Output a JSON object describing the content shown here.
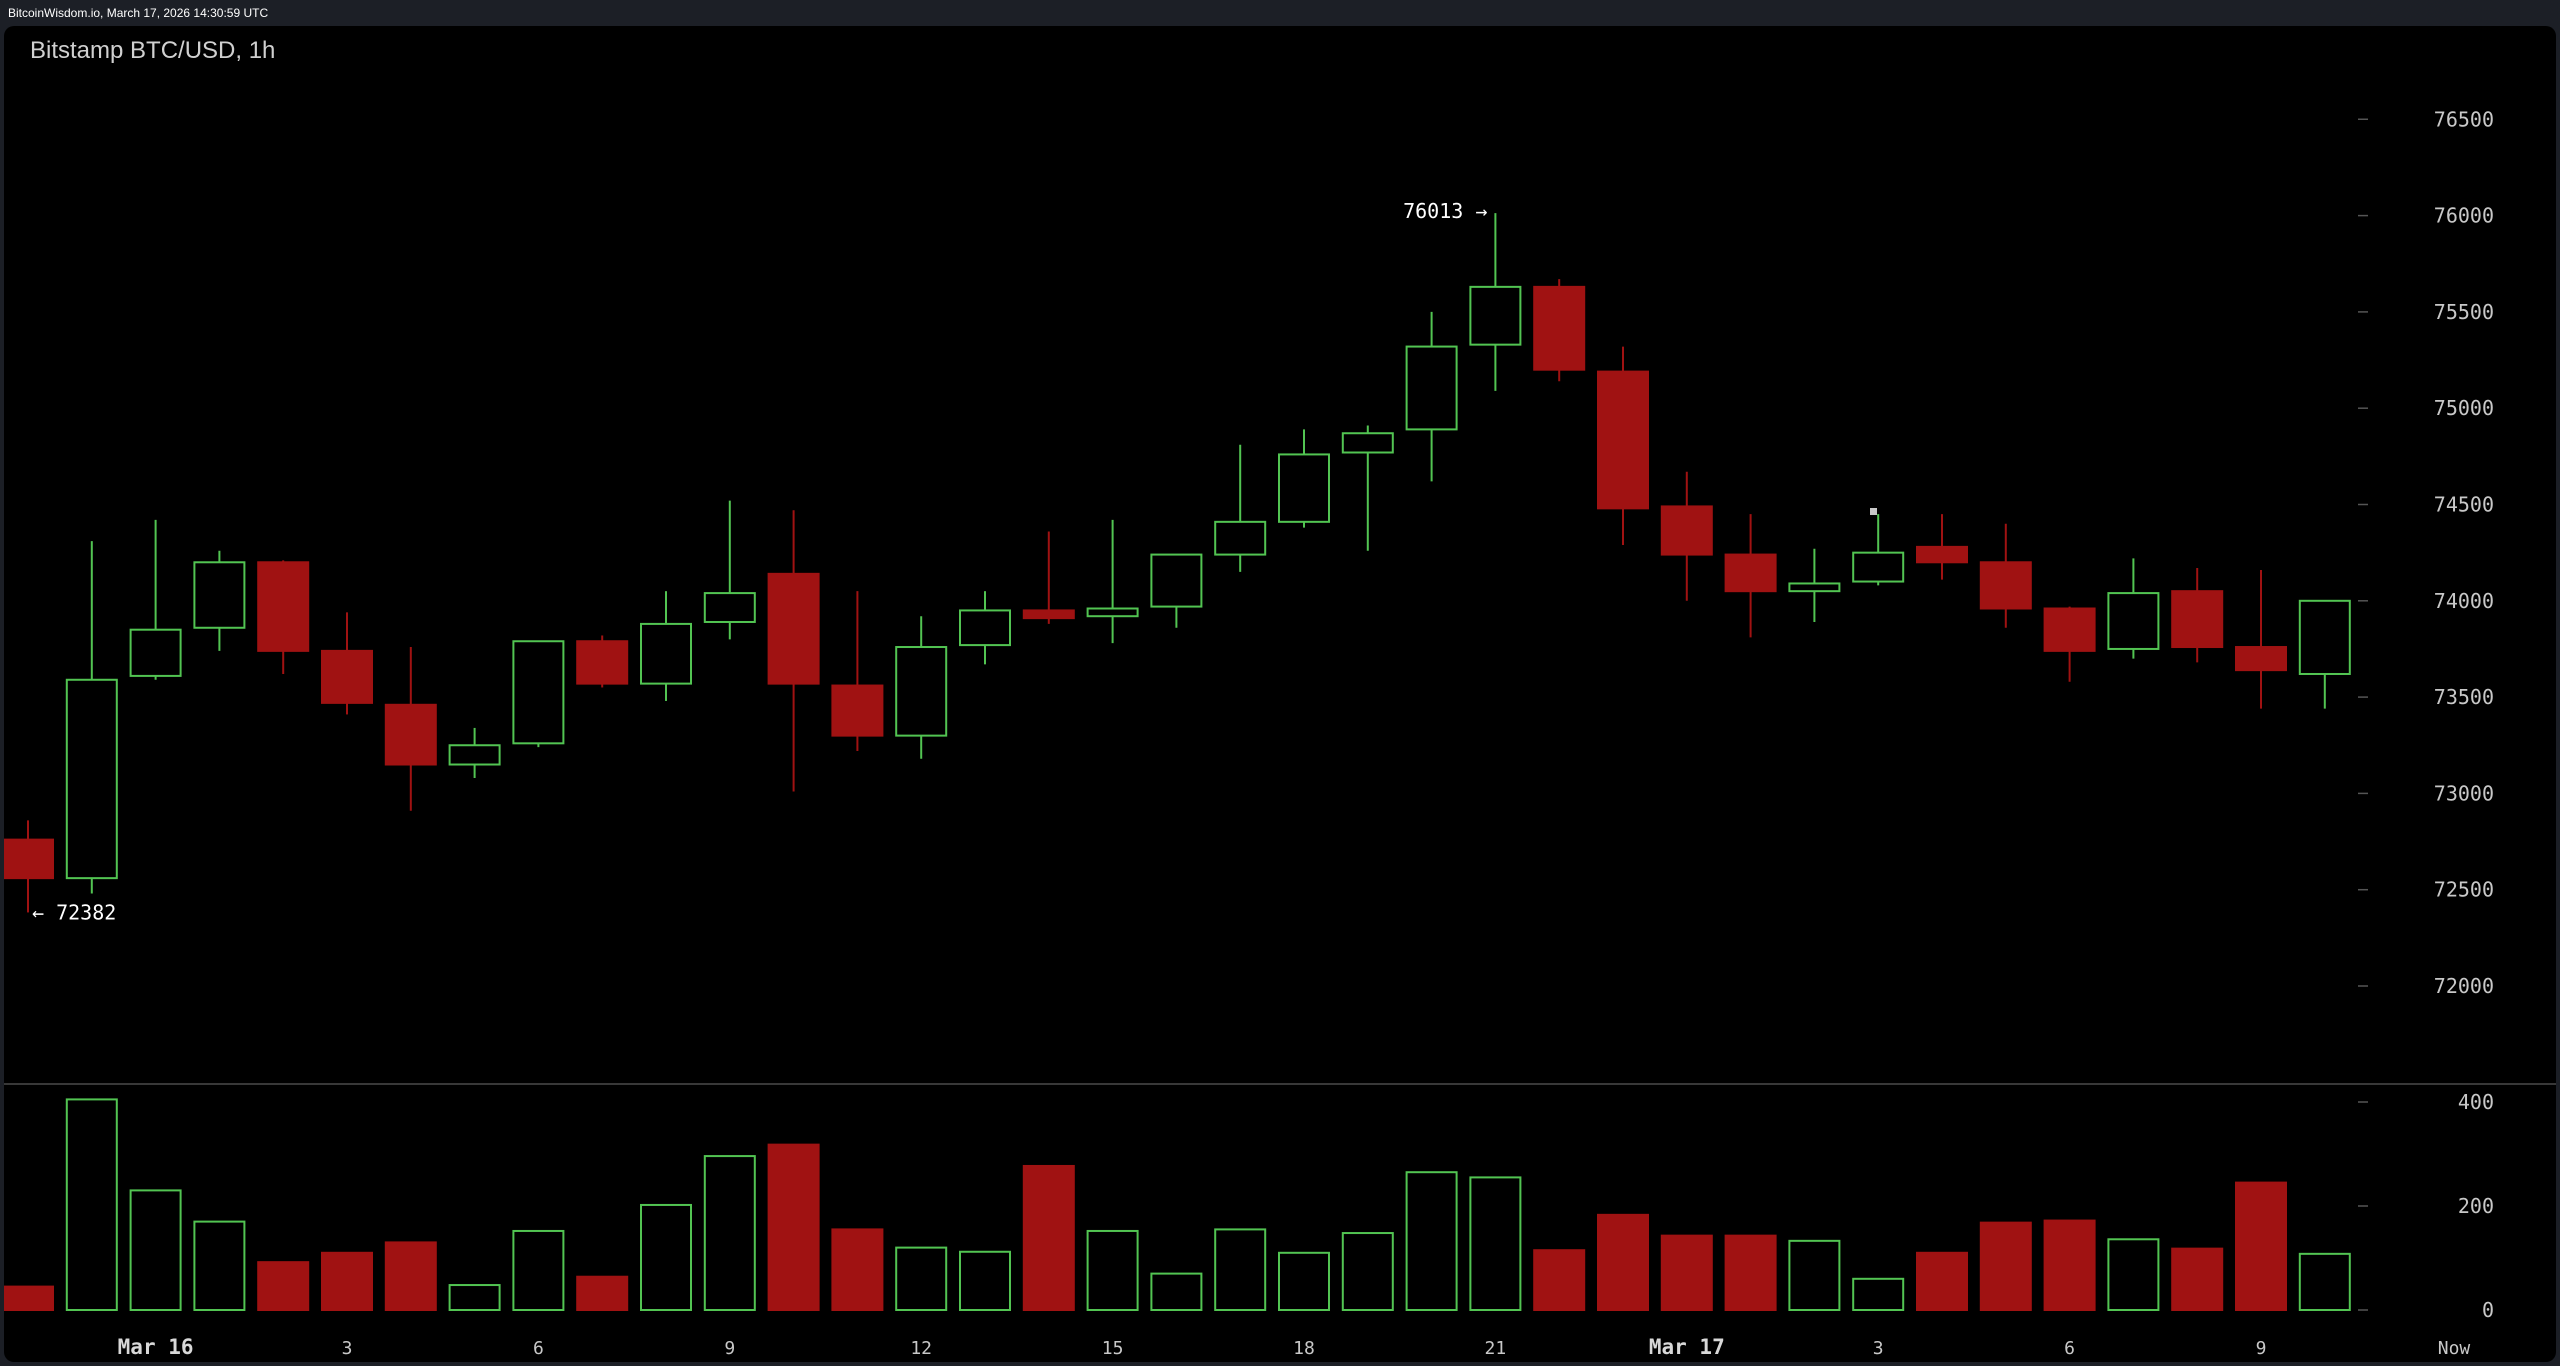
{
  "header": {
    "text": "BitcoinWisdom.io, March 17, 2026 14:30:59 UTC"
  },
  "chart": {
    "title": "Bitstamp BTC/USD, 1h"
  },
  "colors": {
    "up": "#52c452",
    "down": "#a01212",
    "background": "#000000",
    "divider": "#505050"
  },
  "chart_data": {
    "type": "candlestick",
    "title": "Bitstamp BTC/USD, 1h",
    "price_axis": {
      "ylim": [
        71500,
        76800
      ],
      "ticks": [
        72000,
        72500,
        73000,
        73500,
        74000,
        74500,
        75000,
        75500,
        76000,
        76500
      ],
      "position": "right"
    },
    "volume_axis": {
      "ylim": [
        0,
        420
      ],
      "ticks": [
        0,
        200,
        400
      ],
      "position": "right"
    },
    "time_labels": [
      {
        "index": 2,
        "label": "Mar 16",
        "major": true
      },
      {
        "index": 5,
        "label": "3"
      },
      {
        "index": 8,
        "label": "6"
      },
      {
        "index": 11,
        "label": "9"
      },
      {
        "index": 14,
        "label": "12"
      },
      {
        "index": 17,
        "label": "15"
      },
      {
        "index": 20,
        "label": "18"
      },
      {
        "index": 23,
        "label": "21"
      },
      {
        "index": 26,
        "label": "Mar 17",
        "major": true
      },
      {
        "index": 29,
        "label": "3"
      },
      {
        "index": 32,
        "label": "6"
      },
      {
        "index": 35,
        "label": "9"
      },
      {
        "index": 38,
        "label": "Now"
      }
    ],
    "annotations": [
      {
        "type": "high",
        "index": 23,
        "value": 76013,
        "label": "76013 →"
      },
      {
        "type": "low",
        "index": 0,
        "value": 72382,
        "label": "← 72382"
      }
    ],
    "candles": [
      {
        "o": 72760,
        "h": 72860,
        "l": 72382,
        "c": 72560,
        "v": 45
      },
      {
        "o": 72560,
        "h": 74310,
        "l": 72480,
        "c": 73590,
        "v": 405
      },
      {
        "o": 73610,
        "h": 74420,
        "l": 73590,
        "c": 73850,
        "v": 230
      },
      {
        "o": 73860,
        "h": 74260,
        "l": 73740,
        "c": 74200,
        "v": 170
      },
      {
        "o": 74200,
        "h": 74210,
        "l": 73620,
        "c": 73740,
        "v": 92
      },
      {
        "o": 73740,
        "h": 73940,
        "l": 73410,
        "c": 73470,
        "v": 110
      },
      {
        "o": 73460,
        "h": 73760,
        "l": 72910,
        "c": 73150,
        "v": 130
      },
      {
        "o": 73150,
        "h": 73340,
        "l": 73080,
        "c": 73250,
        "v": 48
      },
      {
        "o": 73260,
        "h": 73790,
        "l": 73240,
        "c": 73790,
        "v": 152
      },
      {
        "o": 73790,
        "h": 73820,
        "l": 73550,
        "c": 73570,
        "v": 64
      },
      {
        "o": 73570,
        "h": 74050,
        "l": 73480,
        "c": 73880,
        "v": 202
      },
      {
        "o": 73890,
        "h": 74520,
        "l": 73800,
        "c": 74040,
        "v": 296
      },
      {
        "o": 74140,
        "h": 74470,
        "l": 73010,
        "c": 73570,
        "v": 318
      },
      {
        "o": 73560,
        "h": 74050,
        "l": 73220,
        "c": 73300,
        "v": 155
      },
      {
        "o": 73300,
        "h": 73920,
        "l": 73180,
        "c": 73760,
        "v": 120
      },
      {
        "o": 73770,
        "h": 74050,
        "l": 73670,
        "c": 73950,
        "v": 112
      },
      {
        "o": 73950,
        "h": 74360,
        "l": 73880,
        "c": 73910,
        "v": 277
      },
      {
        "o": 73920,
        "h": 74420,
        "l": 73780,
        "c": 73960,
        "v": 152
      },
      {
        "o": 73970,
        "h": 74240,
        "l": 73860,
        "c": 74240,
        "v": 70
      },
      {
        "o": 74240,
        "h": 74810,
        "l": 74150,
        "c": 74410,
        "v": 155
      },
      {
        "o": 74410,
        "h": 74890,
        "l": 74380,
        "c": 74760,
        "v": 110
      },
      {
        "o": 74770,
        "h": 74910,
        "l": 74260,
        "c": 74870,
        "v": 148
      },
      {
        "o": 74890,
        "h": 75500,
        "l": 74620,
        "c": 75320,
        "v": 265
      },
      {
        "o": 75330,
        "h": 76013,
        "l": 75090,
        "c": 75630,
        "v": 255
      },
      {
        "o": 75630,
        "h": 75670,
        "l": 75140,
        "c": 75200,
        "v": 115
      },
      {
        "o": 75190,
        "h": 75320,
        "l": 74290,
        "c": 74480,
        "v": 183
      },
      {
        "o": 74490,
        "h": 74670,
        "l": 74000,
        "c": 74240,
        "v": 143
      },
      {
        "o": 74240,
        "h": 74450,
        "l": 73810,
        "c": 74050,
        "v": 143
      },
      {
        "o": 74050,
        "h": 74270,
        "l": 73890,
        "c": 74090,
        "v": 133
      },
      {
        "o": 74100,
        "h": 74450,
        "l": 74080,
        "c": 74250,
        "v": 60
      },
      {
        "o": 74280,
        "h": 74450,
        "l": 74110,
        "c": 74200,
        "v": 110
      },
      {
        "o": 74200,
        "h": 74400,
        "l": 73860,
        "c": 73960,
        "v": 168
      },
      {
        "o": 73960,
        "h": 73970,
        "l": 73580,
        "c": 73740,
        "v": 172
      },
      {
        "o": 73750,
        "h": 74220,
        "l": 73700,
        "c": 74040,
        "v": 136
      },
      {
        "o": 74050,
        "h": 74170,
        "l": 73680,
        "c": 73760,
        "v": 118
      },
      {
        "o": 73760,
        "h": 74160,
        "l": 73440,
        "c": 73640,
        "v": 245
      },
      {
        "o": 73620,
        "h": 74000,
        "l": 73440,
        "c": 74000,
        "v": 108
      }
    ]
  }
}
